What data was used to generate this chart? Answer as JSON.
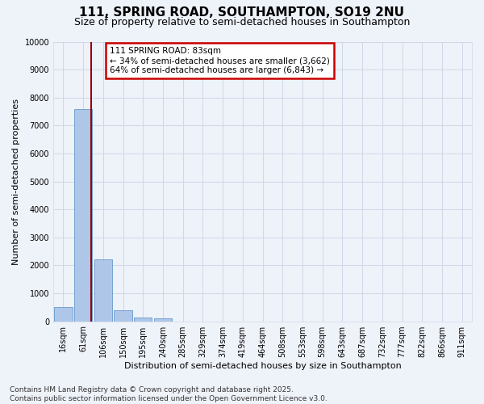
{
  "title_line1": "111, SPRING ROAD, SOUTHAMPTON, SO19 2NU",
  "title_line2": "Size of property relative to semi-detached houses in Southampton",
  "xlabel": "Distribution of semi-detached houses by size in Southampton",
  "ylabel": "Number of semi-detached properties",
  "categories": [
    "16sqm",
    "61sqm",
    "106sqm",
    "150sqm",
    "195sqm",
    "240sqm",
    "285sqm",
    "329sqm",
    "374sqm",
    "419sqm",
    "464sqm",
    "508sqm",
    "553sqm",
    "598sqm",
    "643sqm",
    "687sqm",
    "732sqm",
    "777sqm",
    "822sqm",
    "866sqm",
    "911sqm"
  ],
  "values": [
    500,
    7600,
    2200,
    380,
    130,
    90,
    0,
    0,
    0,
    0,
    0,
    0,
    0,
    0,
    0,
    0,
    0,
    0,
    0,
    0,
    0
  ],
  "bar_color": "#aec6e8",
  "bar_edge_color": "#6699cc",
  "red_line_x": 1.38,
  "annotation_text": "111 SPRING ROAD: 83sqm\n← 34% of semi-detached houses are smaller (3,662)\n64% of semi-detached houses are larger (6,843) →",
  "annotation_box_color": "#ffffff",
  "annotation_box_edge_color": "#cc0000",
  "ylim": [
    0,
    10000
  ],
  "yticks": [
    0,
    1000,
    2000,
    3000,
    4000,
    5000,
    6000,
    7000,
    8000,
    9000,
    10000
  ],
  "background_color": "#eef2f9",
  "grid_color": "#d0d8e8",
  "footer": "Contains HM Land Registry data © Crown copyright and database right 2025.\nContains public sector information licensed under the Open Government Licence v3.0.",
  "title_fontsize": 11,
  "subtitle_fontsize": 9,
  "axis_label_fontsize": 8,
  "tick_fontsize": 7,
  "annotation_fontsize": 7.5,
  "footer_fontsize": 6.5
}
